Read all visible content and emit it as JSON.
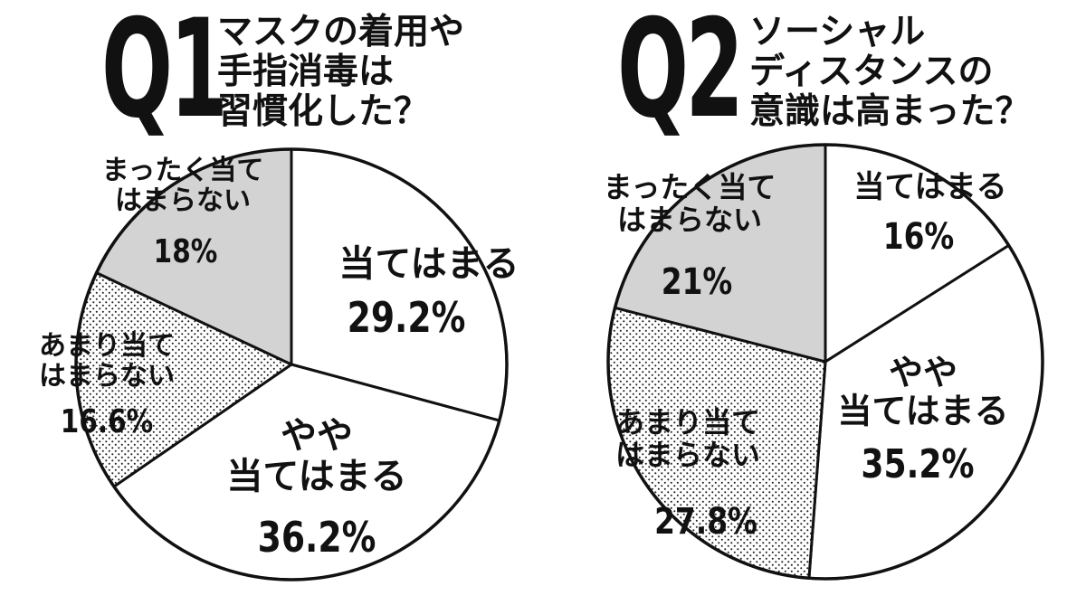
{
  "colors": {
    "white_slice": "#ffffff",
    "gray_slice": "#d3d3d3",
    "dot_bg": "#ffffff",
    "dot": "#222222",
    "stroke": "#111111"
  },
  "chart_data": [
    {
      "type": "pie",
      "question_number": "Q1",
      "title_lines": [
        "マスクの着用や",
        "手指消毒は",
        "習慣化した？"
      ],
      "slices": [
        {
          "name_lines": [
            "当てはまる"
          ],
          "value": 29.2,
          "value_label": "29.2%",
          "fill": "white"
        },
        {
          "name_lines": [
            "やや",
            "当てはまる"
          ],
          "value": 36.2,
          "value_label": "36.2%",
          "fill": "white"
        },
        {
          "name_lines": [
            "あまり当て",
            "はまらない"
          ],
          "value": 16.6,
          "value_label": "16.6%",
          "fill": "dots"
        },
        {
          "name_lines": [
            "まったく当て",
            "はまらない"
          ],
          "value": 18,
          "value_label": "18%",
          "fill": "gray"
        }
      ]
    },
    {
      "type": "pie",
      "question_number": "Q2",
      "title_lines": [
        "ソーシャル",
        "ディスタンスの",
        "意識は高まった？"
      ],
      "slices": [
        {
          "name_lines": [
            "当てはまる"
          ],
          "value": 16,
          "value_label": "16%",
          "fill": "white"
        },
        {
          "name_lines": [
            "やや",
            "当てはまる"
          ],
          "value": 35.2,
          "value_label": "35.2%",
          "fill": "white"
        },
        {
          "name_lines": [
            "あまり当て",
            "はまらない"
          ],
          "value": 27.8,
          "value_label": "27.8%",
          "fill": "dots"
        },
        {
          "name_lines": [
            "まったく当て",
            "はまらない"
          ],
          "value": 21,
          "value_label": "21%",
          "fill": "gray"
        }
      ]
    }
  ]
}
